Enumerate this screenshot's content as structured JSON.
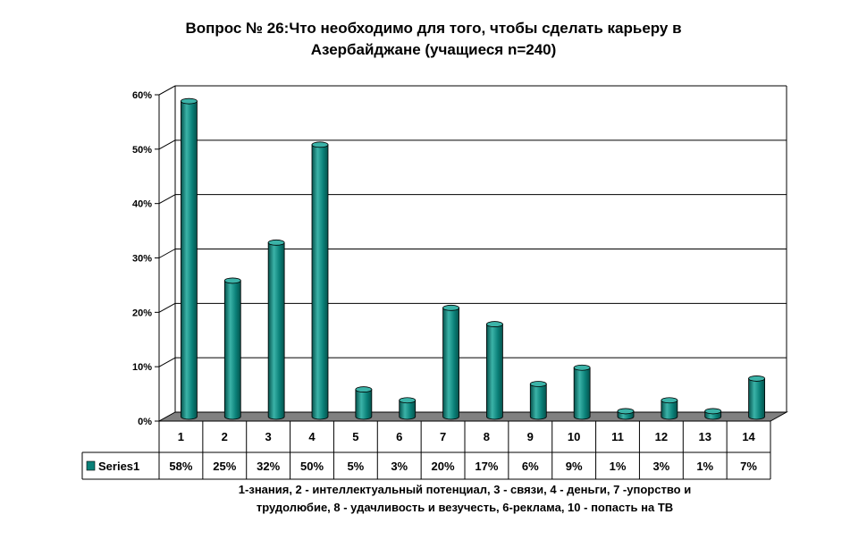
{
  "title_lines": [
    "Вопрос № 26:Что необходимо для того, чтобы сделать карьеру в",
    "Азербайджане (учащиеся n=240)"
  ],
  "footnote_lines": [
    "1-знания, 2 - интеллектуальный потенциал, 3 - связи, 4 - деньги, 7 -упорство и",
    "трудолюбие, 8 - удачливость и везучесть, 6-реклама, 10 - попасть на ТВ"
  ],
  "colors": {
    "bar": "#0a8078",
    "bar_light": "#3bb3a8",
    "bar_dark": "#05524c",
    "floor": "#808080"
  },
  "chart_data": {
    "type": "bar",
    "categories": [
      "1",
      "2",
      "3",
      "4",
      "5",
      "6",
      "7",
      "8",
      "9",
      "10",
      "11",
      "12",
      "13",
      "14"
    ],
    "series": [
      {
        "name": "Series1",
        "values": [
          58,
          25,
          32,
          50,
          5,
          3,
          20,
          17,
          6,
          9,
          1,
          3,
          1,
          7
        ],
        "labels": [
          "58%",
          "25%",
          "32%",
          "50%",
          "5%",
          "3%",
          "20%",
          "17%",
          "6%",
          "9%",
          "1%",
          "3%",
          "1%",
          "7%"
        ]
      }
    ],
    "yticks": [
      "0%",
      "10%",
      "20%",
      "30%",
      "40%",
      "50%",
      "60%"
    ],
    "ylim": [
      0,
      60
    ],
    "grid": true,
    "legend": "data-table-left"
  }
}
